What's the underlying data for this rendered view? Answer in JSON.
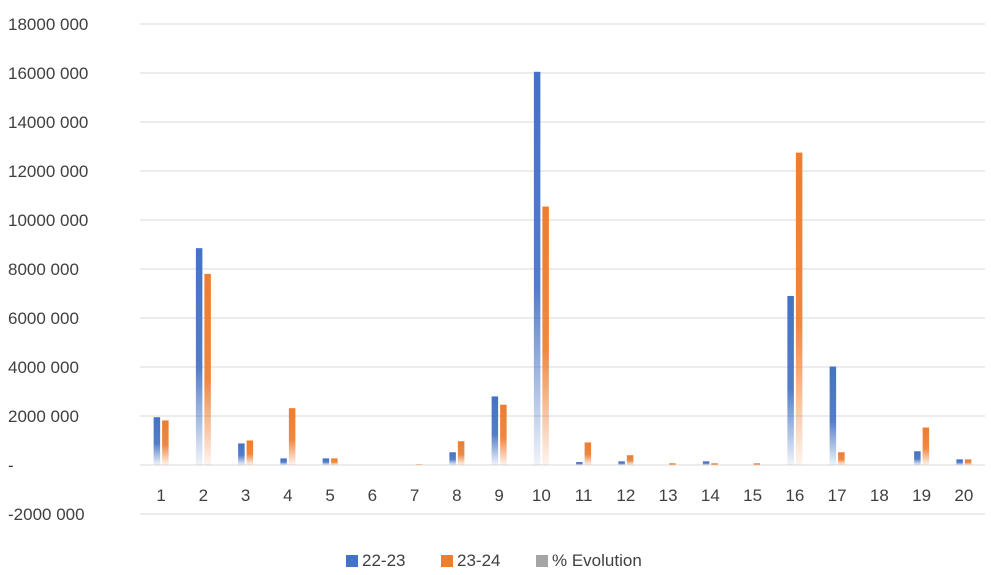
{
  "chart_data": {
    "type": "bar",
    "categories": [
      "1",
      "2",
      "3",
      "4",
      "5",
      "6",
      "7",
      "8",
      "9",
      "10",
      "11",
      "12",
      "13",
      "14",
      "15",
      "16",
      "17",
      "18",
      "19",
      "20"
    ],
    "series": [
      {
        "name": "22-23",
        "color": "#4472C4",
        "values": [
          1950000,
          8850000,
          880000,
          270000,
          270000,
          0,
          0,
          520000,
          2800000,
          16050000,
          120000,
          150000,
          0,
          150000,
          0,
          6900000,
          4020000,
          0,
          560000,
          230000
        ]
      },
      {
        "name": "23-24",
        "color": "#ED7D31",
        "values": [
          1820000,
          7800000,
          1000000,
          2320000,
          270000,
          0,
          20000,
          970000,
          2460000,
          10550000,
          920000,
          400000,
          70000,
          70000,
          70000,
          12750000,
          520000,
          0,
          1530000,
          230000
        ]
      },
      {
        "name": "% Evolution",
        "color": "#A5A5A5",
        "values": [
          0,
          0,
          0,
          0,
          0,
          0,
          0,
          0,
          0,
          0,
          0,
          0,
          0,
          0,
          0,
          0,
          0,
          0,
          0,
          0
        ]
      }
    ],
    "ylim": [
      -2000000,
      18000000
    ],
    "ytick_values": [
      18000000,
      16000000,
      14000000,
      12000000,
      10000000,
      8000000,
      6000000,
      4000000,
      2000000,
      0,
      -2000000
    ],
    "ytick_labels": [
      "18000 000",
      "16000 000",
      "14000 000",
      "12000 000",
      "10000 000",
      "8000 000",
      "6000 000",
      "4000 000",
      "2000 000",
      "-",
      "-2000 000"
    ],
    "grid": true,
    "legend_position": "bottom"
  }
}
